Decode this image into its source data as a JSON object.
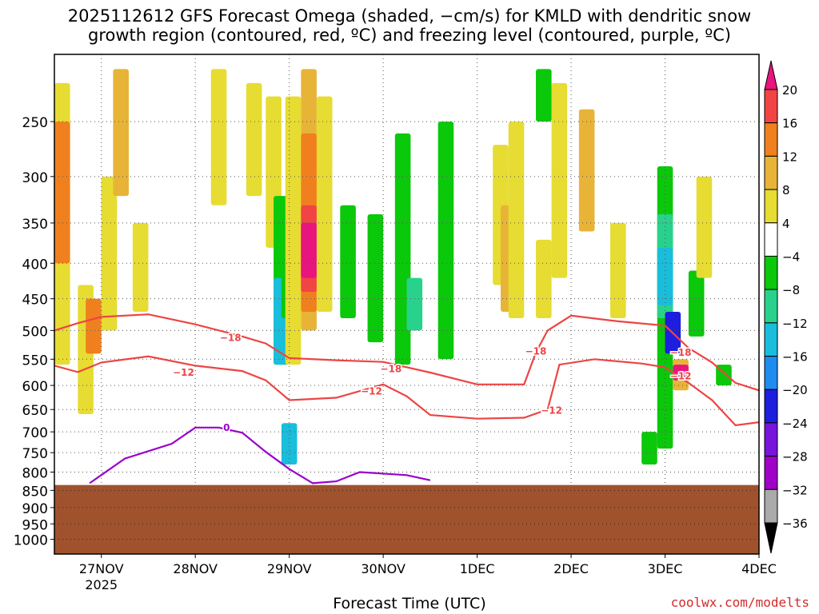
{
  "title_line1": "2025112612 GFS Forecast Omega (shaded, −cm/s) for KMLD with dendritic snow",
  "title_line2": "growth region (contoured, red, ºC) and freezing level (contoured, purple, ºC)",
  "xlabel": "Forecast Time (UTC)",
  "credit": "coolwx.com/modelts",
  "colors": {
    "ground": "#a0522d",
    "dgz_contour": "#ee4444",
    "freezing_contour": "#9900cc"
  },
  "chart_data": {
    "type": "heatmap",
    "title": "2025112612 GFS Forecast Omega (shaded, −cm/s) for KMLD with dendritic snow growth region (contoured, red, ºC) and freezing level (contoured, purple, ºC)",
    "xlabel": "Forecast Time (UTC)",
    "ylabel": "",
    "x_range": [
      "2025-11-26T12Z",
      "2025-12-04T00Z"
    ],
    "y_range_hPa": [
      1050,
      200
    ],
    "grid": true,
    "x_ticks": [
      {
        "label": "27NOV",
        "sublabel": "2025",
        "date": "2025-11-27T00Z"
      },
      {
        "label": "28NOV",
        "sublabel": "",
        "date": "2025-11-28T00Z"
      },
      {
        "label": "29NOV",
        "sublabel": "",
        "date": "2025-11-29T00Z"
      },
      {
        "label": "30NOV",
        "sublabel": "",
        "date": "2025-11-30T00Z"
      },
      {
        "label": "1DEC",
        "sublabel": "",
        "date": "2025-12-01T00Z"
      },
      {
        "label": "2DEC",
        "sublabel": "",
        "date": "2025-12-02T00Z"
      },
      {
        "label": "3DEC",
        "sublabel": "",
        "date": "2025-12-03T00Z"
      },
      {
        "label": "4DEC",
        "sublabel": "",
        "date": "2025-12-04T00Z"
      }
    ],
    "y_ticks": [
      "250",
      "300",
      "350",
      "400",
      "450",
      "500",
      "550",
      "600",
      "650",
      "700",
      "750",
      "800",
      "850",
      "900",
      "950",
      "1000"
    ],
    "colorbar": {
      "labels": [
        "20",
        "16",
        "12",
        "8",
        "4",
        "−4",
        "−8",
        "−12",
        "−16",
        "−20",
        "−24",
        "−28",
        "−32",
        "−36"
      ],
      "bins": [
        {
          "range": "≥20",
          "color": "#e8157e"
        },
        {
          "range": "16 to 20",
          "color": "#f24444"
        },
        {
          "range": "12 to 16",
          "color": "#f0801e"
        },
        {
          "range": "8 to 12",
          "color": "#e8b437"
        },
        {
          "range": "4 to 8",
          "color": "#e7dc32"
        },
        {
          "range": "−4 to 4",
          "color": "#ffffff"
        },
        {
          "range": "−8 to −4",
          "color": "#0ac80a"
        },
        {
          "range": "−12 to −8",
          "color": "#28d28c"
        },
        {
          "range": "−16 to −12",
          "color": "#18bedc"
        },
        {
          "range": "−20 to −16",
          "color": "#1e8cf0"
        },
        {
          "range": "−24 to −20",
          "color": "#1e1ede"
        },
        {
          "range": "−28 to −24",
          "color": "#7814dc"
        },
        {
          "range": "−32 to −28",
          "color": "#a000c8"
        },
        {
          "range": "−36 to −32",
          "color": "#aaaaaa"
        },
        {
          "range": "<−36",
          "color": "#000000"
        }
      ]
    },
    "surface_pressure_hPa": 835,
    "contour_series": [
      {
        "name": "−18",
        "color": "#ee4444",
        "label_pos": {
          "date": "2025-11-28T09Z",
          "hPa": 512
        },
        "points": [
          [
            "2025-11-26T12Z",
            500
          ],
          [
            "2025-11-26T18Z",
            488
          ],
          [
            "2025-11-27T00Z",
            478
          ],
          [
            "2025-11-27T12Z",
            474
          ],
          [
            "2025-11-28T00Z",
            490
          ],
          [
            "2025-11-28T12Z",
            510
          ],
          [
            "2025-11-28T18Z",
            522
          ],
          [
            "2025-11-29T00Z",
            548
          ],
          [
            "2025-11-29T12Z",
            552
          ],
          [
            "2025-11-30T00Z",
            555
          ],
          [
            "2025-11-30T12Z",
            575
          ],
          [
            "2025-12-01T00Z",
            598
          ],
          [
            "2025-12-01T12Z",
            598
          ],
          [
            "2025-12-01T15Z",
            538
          ],
          [
            "2025-12-01T18Z",
            500
          ],
          [
            "2025-12-02T00Z",
            476
          ],
          [
            "2025-12-02T12Z",
            485
          ],
          [
            "2025-12-03T00Z",
            492
          ],
          [
            "2025-12-03T06Z",
            530
          ],
          [
            "2025-12-03T12Z",
            556
          ],
          [
            "2025-12-03T18Z",
            595
          ],
          [
            "2025-12-04T00Z",
            610
          ]
        ]
      },
      {
        "name": "−12",
        "color": "#ee4444",
        "label_pos": {
          "date": "2025-11-27T21Z",
          "hPa": 575
        },
        "points": [
          [
            "2025-11-26T12Z",
            562
          ],
          [
            "2025-11-26T18Z",
            574
          ],
          [
            "2025-11-27T00Z",
            556
          ],
          [
            "2025-11-27T12Z",
            545
          ],
          [
            "2025-11-28T00Z",
            562
          ],
          [
            "2025-11-28T12Z",
            572
          ],
          [
            "2025-11-28T18Z",
            590
          ],
          [
            "2025-11-29T00Z",
            630
          ],
          [
            "2025-11-29T12Z",
            625
          ],
          [
            "2025-11-30T00Z",
            598
          ],
          [
            "2025-11-30T06Z",
            622
          ],
          [
            "2025-11-30T12Z",
            662
          ],
          [
            "2025-12-01T00Z",
            670
          ],
          [
            "2025-12-01T12Z",
            668
          ],
          [
            "2025-12-01T18Z",
            650
          ],
          [
            "2025-12-01T21Z",
            560
          ],
          [
            "2025-12-02T06Z",
            550
          ],
          [
            "2025-12-02T18Z",
            558
          ],
          [
            "2025-12-03T00Z",
            565
          ],
          [
            "2025-12-03T06Z",
            595
          ],
          [
            "2025-12-03T12Z",
            630
          ],
          [
            "2025-12-03T18Z",
            685
          ],
          [
            "2025-12-04T00Z",
            678
          ]
        ]
      },
      {
        "name": "0",
        "color": "#9900cc",
        "label_pos": {
          "date": "2025-11-28T08Z",
          "hPa": 690
        },
        "points": [
          [
            "2025-11-26T21Z",
            830
          ],
          [
            "2025-11-27T06Z",
            765
          ],
          [
            "2025-11-27T18Z",
            728
          ],
          [
            "2025-11-28T00Z",
            690
          ],
          [
            "2025-11-28T06Z",
            690
          ],
          [
            "2025-11-28T12Z",
            702
          ],
          [
            "2025-11-28T18Z",
            748
          ],
          [
            "2025-11-29T00Z",
            792
          ],
          [
            "2025-11-29T06Z",
            830
          ],
          [
            "2025-11-29T12Z",
            825
          ],
          [
            "2025-11-29T18Z",
            800
          ],
          [
            "2025-11-30T06Z",
            808
          ],
          [
            "2025-11-30T12Z",
            822
          ]
        ]
      }
    ],
    "contour_labels": [
      {
        "text": "−18",
        "date": "2025-11-28T09Z",
        "hPa": 512
      },
      {
        "text": "−12",
        "date": "2025-11-27T21Z",
        "hPa": 575
      },
      {
        "text": "−18",
        "date": "2025-11-30T02Z",
        "hPa": 568
      },
      {
        "text": "−12",
        "date": "2025-11-29T21Z",
        "hPa": 612
      },
      {
        "text": "−18",
        "date": "2025-12-01T15Z",
        "hPa": 536
      },
      {
        "text": "−12",
        "date": "2025-12-01T19Z",
        "hPa": 652
      },
      {
        "text": "−18",
        "date": "2025-12-03T04Z",
        "hPa": 538
      },
      {
        "text": "−12",
        "date": "2025-12-03T04Z",
        "hPa": 582
      },
      {
        "text": "0",
        "date": "2025-11-28T08Z",
        "hPa": 690
      }
    ],
    "omega_regions": [
      {
        "date": "2025-11-26T14Z",
        "hPa": [
          220,
          560
        ],
        "bin": 4
      },
      {
        "date": "2025-11-26T14Z",
        "hPa": [
          250,
          400
        ],
        "bin": 2
      },
      {
        "date": "2025-11-26T20Z",
        "hPa": [
          430,
          660
        ],
        "bin": 4
      },
      {
        "date": "2025-11-26T22Z",
        "hPa": [
          450,
          540
        ],
        "bin": 2
      },
      {
        "date": "2025-11-27T02Z",
        "hPa": [
          300,
          500
        ],
        "bin": 4
      },
      {
        "date": "2025-11-27T05Z",
        "hPa": [
          210,
          320
        ],
        "bin": 3
      },
      {
        "date": "2025-11-27T10Z",
        "hPa": [
          350,
          470
        ],
        "bin": 4
      },
      {
        "date": "2025-11-28T06Z",
        "hPa": [
          210,
          330
        ],
        "bin": 4
      },
      {
        "date": "2025-11-28T15Z",
        "hPa": [
          220,
          320
        ],
        "bin": 4
      },
      {
        "date": "2025-11-28T20Z",
        "hPa": [
          230,
          380
        ],
        "bin": 4
      },
      {
        "date": "2025-11-28T22Z",
        "hPa": [
          320,
          560
        ],
        "bin": 6
      },
      {
        "date": "2025-11-28T22Z",
        "hPa": [
          420,
          560
        ],
        "bin": 8
      },
      {
        "date": "2025-11-29T00Z",
        "hPa": [
          340,
          480
        ],
        "bin": 6
      },
      {
        "date": "2025-11-29T00Z",
        "hPa": [
          680,
          780
        ],
        "bin": 8
      },
      {
        "date": "2025-11-29T01Z",
        "hPa": [
          230,
          560
        ],
        "bin": 4
      },
      {
        "date": "2025-11-29T05Z",
        "hPa": [
          210,
          500
        ],
        "bin": 3
      },
      {
        "date": "2025-11-29T05Z",
        "hPa": [
          260,
          470
        ],
        "bin": 2
      },
      {
        "date": "2025-11-29T05Z",
        "hPa": [
          330,
          440
        ],
        "bin": 1
      },
      {
        "date": "2025-11-29T05Z",
        "hPa": [
          350,
          420
        ],
        "bin": 0
      },
      {
        "date": "2025-11-29T09Z",
        "hPa": [
          230,
          470
        ],
        "bin": 4
      },
      {
        "date": "2025-11-29T15Z",
        "hPa": [
          330,
          480
        ],
        "bin": 6
      },
      {
        "date": "2025-11-29T22Z",
        "hPa": [
          340,
          520
        ],
        "bin": 6
      },
      {
        "date": "2025-11-30T05Z",
        "hPa": [
          260,
          560
        ],
        "bin": 6
      },
      {
        "date": "2025-11-30T08Z",
        "hPa": [
          420,
          500
        ],
        "bin": 7
      },
      {
        "date": "2025-11-30T16Z",
        "hPa": [
          250,
          550
        ],
        "bin": 6
      },
      {
        "date": "2025-12-01T06Z",
        "hPa": [
          270,
          430
        ],
        "bin": 4
      },
      {
        "date": "2025-12-01T08Z",
        "hPa": [
          330,
          470
        ],
        "bin": 3
      },
      {
        "date": "2025-12-01T10Z",
        "hPa": [
          250,
          480
        ],
        "bin": 4
      },
      {
        "date": "2025-12-01T17Z",
        "hPa": [
          370,
          480
        ],
        "bin": 4
      },
      {
        "date": "2025-12-01T17Z",
        "hPa": [
          210,
          250
        ],
        "bin": 6
      },
      {
        "date": "2025-12-01T21Z",
        "hPa": [
          220,
          420
        ],
        "bin": 4
      },
      {
        "date": "2025-12-02T04Z",
        "hPa": [
          240,
          360
        ],
        "bin": 3
      },
      {
        "date": "2025-12-02T12Z",
        "hPa": [
          350,
          480
        ],
        "bin": 4
      },
      {
        "date": "2025-12-03T00Z",
        "hPa": [
          290,
          740
        ],
        "bin": 6
      },
      {
        "date": "2025-12-03T00Z",
        "hPa": [
          340,
          480
        ],
        "bin": 7
      },
      {
        "date": "2025-12-03T00Z",
        "hPa": [
          380,
          460
        ],
        "bin": 8
      },
      {
        "date": "2025-12-03T02Z",
        "hPa": [
          470,
          540
        ],
        "bin": 10
      },
      {
        "date": "2025-12-03T04Z",
        "hPa": [
          550,
          610
        ],
        "bin": 3
      },
      {
        "date": "2025-12-03T04Z",
        "hPa": [
          560,
          590
        ],
        "bin": 0
      },
      {
        "date": "2025-12-03T08Z",
        "hPa": [
          410,
          510
        ],
        "bin": 6
      },
      {
        "date": "2025-12-03T10Z",
        "hPa": [
          300,
          420
        ],
        "bin": 4
      },
      {
        "date": "2025-12-03T15Z",
        "hPa": [
          560,
          600
        ],
        "bin": 6
      },
      {
        "date": "2025-12-02T20Z",
        "hPa": [
          700,
          780
        ],
        "bin": 6
      }
    ]
  }
}
